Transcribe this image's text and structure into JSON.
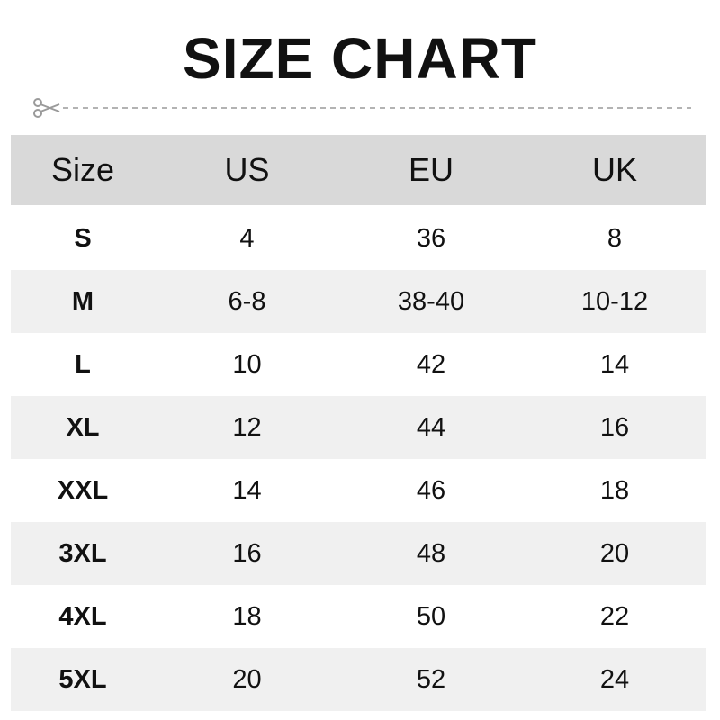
{
  "title": "SIZE CHART",
  "columns": [
    "Size",
    "US",
    "EU",
    "UK"
  ],
  "rows": [
    [
      "S",
      "4",
      "36",
      "8"
    ],
    [
      "M",
      "6-8",
      "38-40",
      "10-12"
    ],
    [
      "L",
      "10",
      "42",
      "14"
    ],
    [
      "XL",
      "12",
      "44",
      "16"
    ],
    [
      "XXL",
      "14",
      "46",
      "18"
    ],
    [
      "3XL",
      "16",
      "48",
      "20"
    ],
    [
      "4XL",
      "18",
      "50",
      "22"
    ],
    [
      "5XL",
      "20",
      "52",
      "24"
    ]
  ],
  "colors": {
    "header_bg": "#d9d9d9",
    "alt_row_bg": "#f0f0f0",
    "cut_line": "#9a9a9a"
  },
  "icons": {
    "cut": "scissors-icon"
  }
}
